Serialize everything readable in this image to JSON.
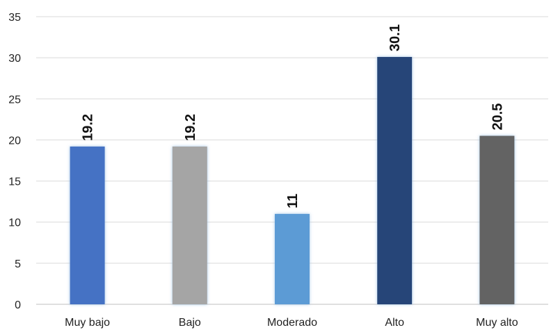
{
  "chart_data": {
    "type": "bar",
    "title": "",
    "xlabel": "",
    "ylabel": "",
    "categories": [
      "Muy bajo",
      "Bajo",
      "Moderado",
      "Alto",
      "Muy alto"
    ],
    "values": [
      19.2,
      19.2,
      11,
      30.1,
      20.5
    ],
    "data_labels": [
      "19.2",
      "19.2",
      "11",
      "30.1",
      "20.5"
    ],
    "colors": [
      "#4472c4",
      "#a5a5a5",
      "#5b9bd5",
      "#264478",
      "#636363"
    ],
    "glow_color": "#9dc3e6",
    "ylim": [
      0,
      35
    ],
    "yticks": [
      "0",
      "5",
      "10",
      "15",
      "20",
      "25",
      "30",
      "35"
    ],
    "grid": true,
    "legend": "none"
  }
}
